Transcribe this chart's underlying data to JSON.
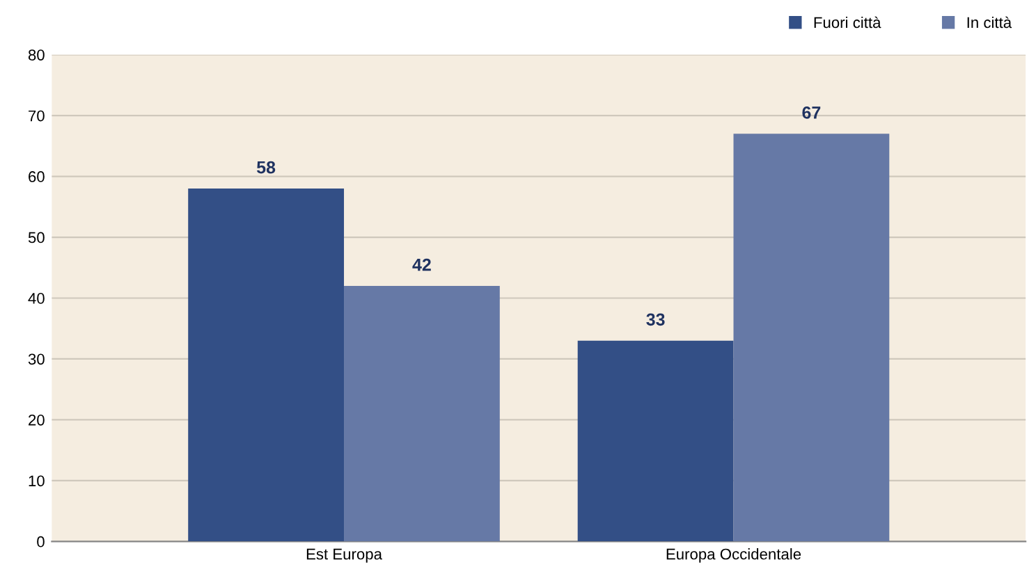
{
  "chart_data": {
    "type": "bar",
    "categories": [
      "Est Europa",
      "Europa Occidentale"
    ],
    "series": [
      {
        "name": "Fuori città",
        "color": "#334f86",
        "values": [
          58,
          33
        ]
      },
      {
        "name": "In città",
        "color": "#6679a6",
        "values": [
          42,
          67
        ]
      }
    ],
    "ylim": [
      0,
      80
    ],
    "yticks": [
      0,
      10,
      20,
      30,
      40,
      50,
      60,
      70,
      80
    ],
    "grid": "y",
    "legend": "top right",
    "data_labels": true
  }
}
